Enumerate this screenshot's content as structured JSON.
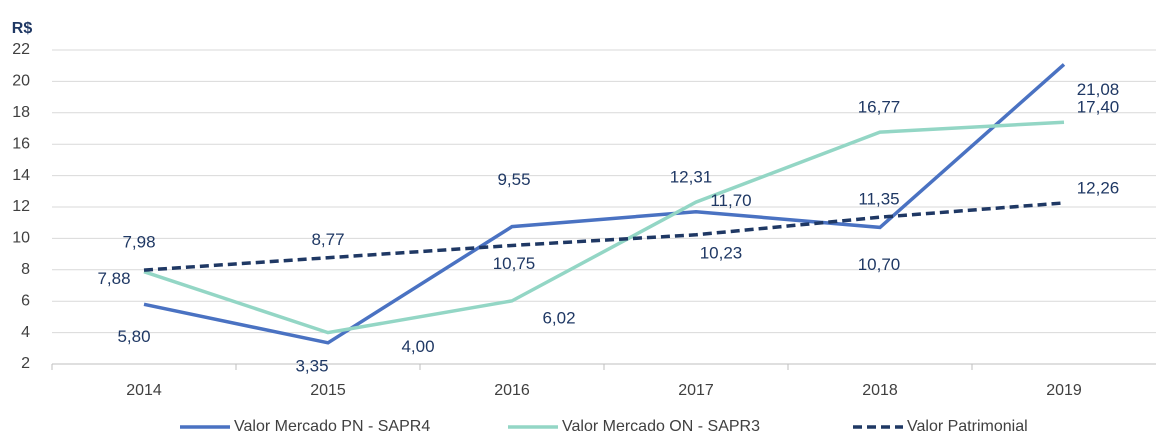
{
  "chart_data": {
    "type": "line",
    "y_unit": "R$",
    "categories": [
      "2014",
      "2015",
      "2016",
      "2017",
      "2018",
      "2019"
    ],
    "ylim": [
      2,
      22
    ],
    "yticks": [
      2,
      4,
      6,
      8,
      10,
      12,
      14,
      16,
      18,
      20,
      22
    ],
    "grid": true,
    "legend": "bottom",
    "series": [
      {
        "name": "Valor Mercado PN - SAPR4",
        "color": "#4a72c2",
        "style": "solid",
        "values": [
          5.8,
          3.35,
          10.75,
          11.7,
          10.7,
          21.08
        ],
        "value_labels": [
          "5,80",
          "3,35",
          "10,75",
          "11,70",
          "10,70",
          "21,08"
        ]
      },
      {
        "name": "Valor Mercado ON - SAPR3",
        "color": "#93d6c5",
        "style": "solid",
        "values": [
          7.88,
          4.0,
          6.02,
          12.31,
          16.77,
          17.4
        ],
        "value_labels": [
          "7,88",
          "4,00",
          "6,02",
          "12,31",
          "16,77",
          "17,40"
        ]
      },
      {
        "name": "Valor Patrimonial",
        "color": "#1f3864",
        "style": "dashed",
        "values": [
          7.98,
          8.77,
          9.55,
          10.23,
          11.35,
          12.26
        ],
        "value_labels": [
          "7,98",
          "8,77",
          "9,55",
          "10,23",
          "11,35",
          "12,26"
        ]
      }
    ]
  }
}
